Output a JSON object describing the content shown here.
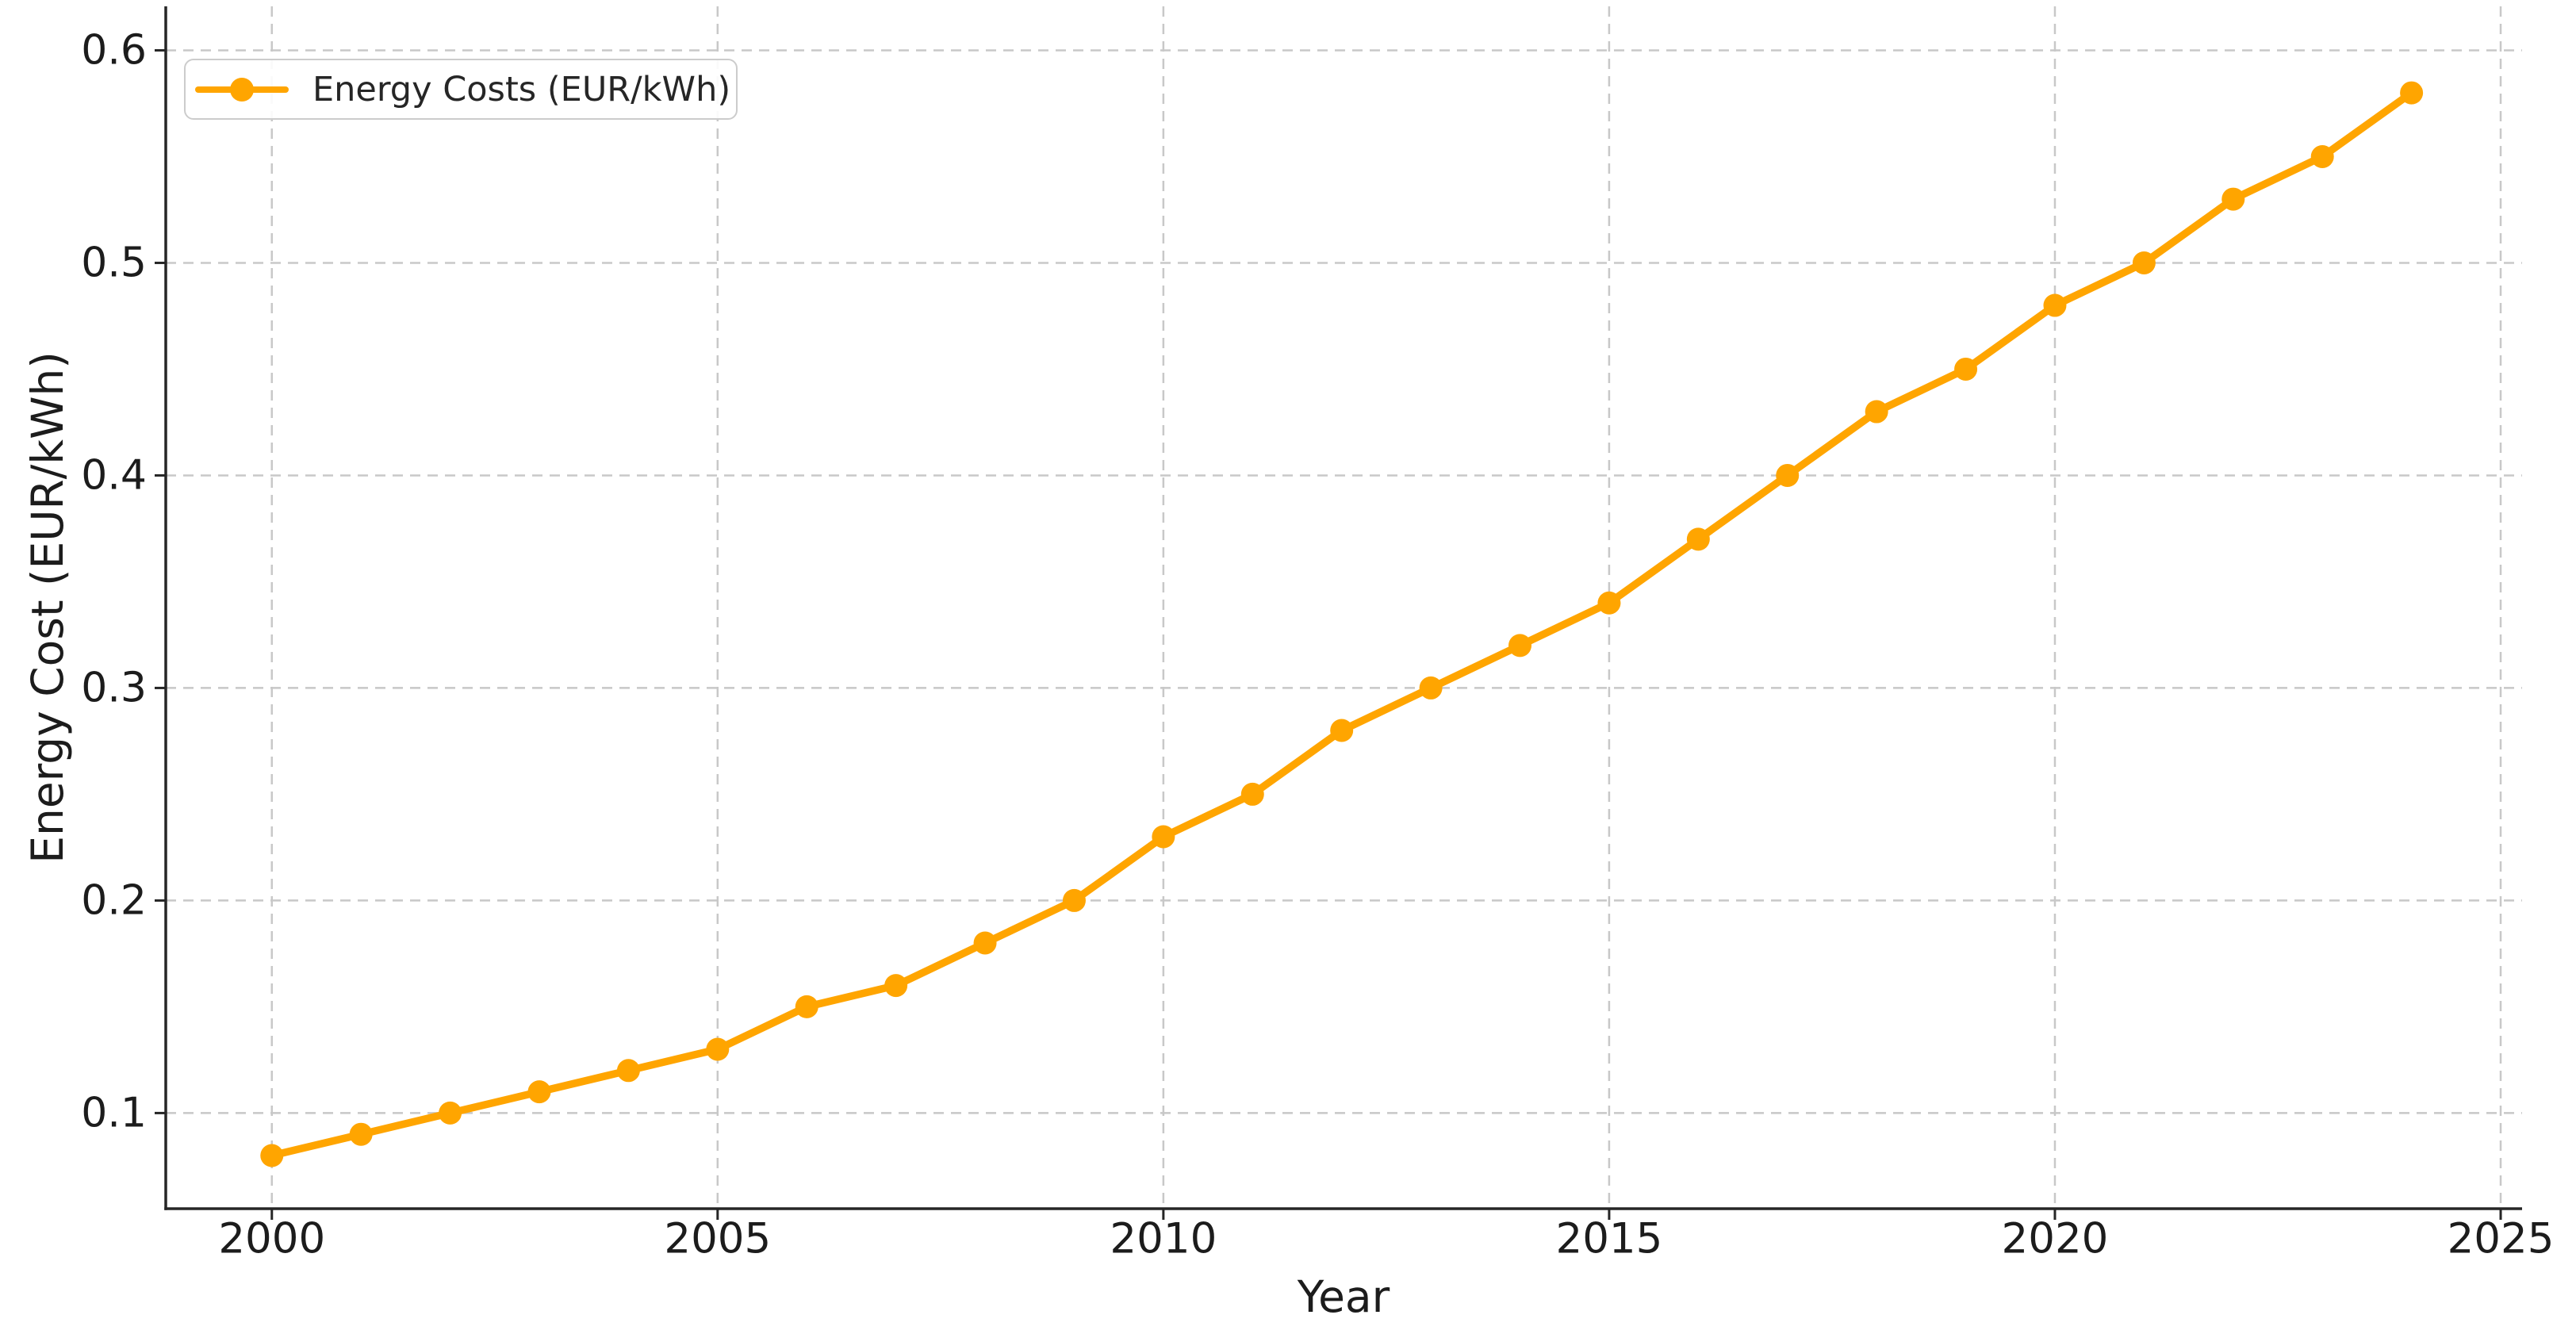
{
  "chart_data": {
    "type": "line",
    "title": "",
    "xlabel": "Year",
    "ylabel": "Energy Cost (EUR/kWh)",
    "legend": {
      "position": "upper left",
      "entries": [
        "Energy Costs (EUR/kWh)"
      ]
    },
    "x": [
      2000,
      2001,
      2002,
      2003,
      2004,
      2005,
      2006,
      2007,
      2008,
      2009,
      2010,
      2011,
      2012,
      2013,
      2014,
      2015,
      2016,
      2017,
      2018,
      2019,
      2020,
      2021,
      2022,
      2023,
      2024
    ],
    "series": [
      {
        "name": "Energy Costs (EUR/kWh)",
        "values": [
          0.08,
          0.09,
          0.1,
          0.11,
          0.12,
          0.13,
          0.15,
          0.16,
          0.18,
          0.2,
          0.23,
          0.25,
          0.28,
          0.3,
          0.32,
          0.34,
          0.37,
          0.4,
          0.43,
          0.45,
          0.48,
          0.5,
          0.53,
          0.55,
          0.58
        ]
      }
    ],
    "xlim": [
      1998.81,
      2025.24
    ],
    "ylim": [
      0.055,
      0.6207
    ],
    "xticks": [
      2000,
      2005,
      2010,
      2015,
      2020,
      2025
    ],
    "xtick_labels": [
      "2000",
      "2005",
      "2010",
      "2015",
      "2020",
      "2025"
    ],
    "yticks": [
      0.1,
      0.2,
      0.3,
      0.4,
      0.5,
      0.6
    ],
    "ytick_labels": [
      "0.1",
      "0.2",
      "0.3",
      "0.4",
      "0.5",
      "0.6"
    ],
    "grid": true,
    "line_color": "#FFA500",
    "marker": "circle",
    "grid_color": "#c8c8c8",
    "axis_color": "#262626",
    "text_color": "#1c1c1c"
  }
}
